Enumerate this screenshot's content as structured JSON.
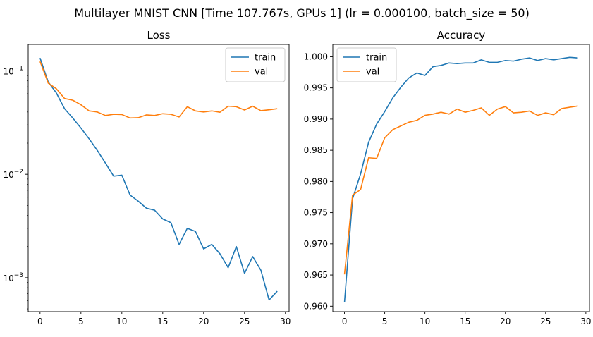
{
  "figure": {
    "suptitle": "Multilayer MNIST CNN [Time 107.767s, GPUs 1] (lr = 0.000100, batch_size = 50)"
  },
  "colors": {
    "train": "#1f77b4",
    "val": "#ff7f0e"
  },
  "chart_data": [
    {
      "type": "line",
      "title": "Loss",
      "xlabel": "",
      "ylabel": "",
      "yscale": "log",
      "xlim": [
        -1.45,
        30.45
      ],
      "ylim": [
        0.00047,
        0.18
      ],
      "x_ticks": [
        0,
        5,
        10,
        15,
        20,
        25,
        30
      ],
      "y_ticks": [
        {
          "value": 0.1,
          "base": "10",
          "exp": "−1"
        },
        {
          "value": 0.01,
          "base": "10",
          "exp": "−2"
        },
        {
          "value": 0.001,
          "base": "10",
          "exp": "−3"
        }
      ],
      "grid": false,
      "legend": "upper right",
      "x": [
        0,
        1,
        2,
        3,
        4,
        5,
        6,
        7,
        8,
        9,
        10,
        11,
        12,
        13,
        14,
        15,
        16,
        17,
        18,
        19,
        20,
        21,
        22,
        23,
        24,
        25,
        26,
        27,
        28,
        29
      ],
      "series": [
        {
          "name": "train",
          "color": "#1f77b4",
          "values": [
            0.133,
            0.078,
            0.061,
            0.043,
            0.035,
            0.028,
            0.022,
            0.017,
            0.0128,
            0.0096,
            0.0098,
            0.0063,
            0.0055,
            0.0047,
            0.0045,
            0.0037,
            0.0034,
            0.0021,
            0.003,
            0.0028,
            0.0019,
            0.0021,
            0.0017,
            0.00125,
            0.002,
            0.0011,
            0.0016,
            0.00118,
            0.00061,
            0.00074
          ]
        },
        {
          "name": "val",
          "color": "#ff7f0e",
          "values": [
            0.123,
            0.076,
            0.067,
            0.054,
            0.052,
            0.047,
            0.041,
            0.04,
            0.037,
            0.038,
            0.0378,
            0.035,
            0.0352,
            0.0375,
            0.037,
            0.0385,
            0.038,
            0.0358,
            0.045,
            0.041,
            0.04,
            0.041,
            0.0398,
            0.0455,
            0.045,
            0.0418,
            0.0455,
            0.0412,
            0.042,
            0.043
          ]
        }
      ]
    },
    {
      "type": "line",
      "title": "Accuracy",
      "xlabel": "",
      "ylabel": "",
      "yscale": "linear",
      "xlim": [
        -1.45,
        30.45
      ],
      "ylim": [
        0.95913,
        1.00197
      ],
      "x_ticks": [
        0,
        5,
        10,
        15,
        20,
        25,
        30
      ],
      "y_ticks": [
        {
          "value": 0.96,
          "label": "0.960"
        },
        {
          "value": 0.965,
          "label": "0.965"
        },
        {
          "value": 0.97,
          "label": "0.970"
        },
        {
          "value": 0.975,
          "label": "0.975"
        },
        {
          "value": 0.98,
          "label": "0.980"
        },
        {
          "value": 0.985,
          "label": "0.985"
        },
        {
          "value": 0.99,
          "label": "0.990"
        },
        {
          "value": 0.995,
          "label": "0.995"
        },
        {
          "value": 1.0,
          "label": "1.000"
        }
      ],
      "grid": false,
      "legend": "upper left",
      "x": [
        0,
        1,
        2,
        3,
        4,
        5,
        6,
        7,
        8,
        9,
        10,
        11,
        12,
        13,
        14,
        15,
        16,
        17,
        18,
        19,
        20,
        21,
        22,
        23,
        24,
        25,
        26,
        27,
        28,
        29
      ],
      "series": [
        {
          "name": "train",
          "color": "#1f77b4",
          "values": [
            0.9606,
            0.9772,
            0.9812,
            0.9863,
            0.9892,
            0.9912,
            0.9934,
            0.9951,
            0.9966,
            0.9974,
            0.997,
            0.9984,
            0.9986,
            0.999,
            0.9989,
            0.999,
            0.999,
            0.9995,
            0.9991,
            0.9991,
            0.9994,
            0.9993,
            0.9996,
            0.9998,
            0.9994,
            0.9997,
            0.9995,
            0.9997,
            0.9999,
            0.9998
          ]
        },
        {
          "name": "val",
          "color": "#ff7f0e",
          "values": [
            0.9651,
            0.9778,
            0.9787,
            0.9838,
            0.9837,
            0.987,
            0.9883,
            0.9889,
            0.9895,
            0.9898,
            0.9906,
            0.9908,
            0.9911,
            0.9908,
            0.9916,
            0.9911,
            0.9914,
            0.9918,
            0.9906,
            0.9916,
            0.992,
            0.991,
            0.9911,
            0.9913,
            0.9906,
            0.991,
            0.9907,
            0.9917,
            0.9919,
            0.9921
          ]
        }
      ]
    }
  ]
}
